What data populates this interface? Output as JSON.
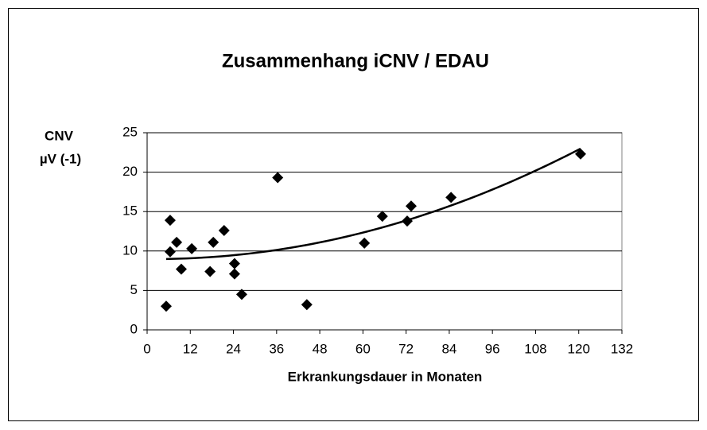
{
  "chart_data": {
    "type": "scatter",
    "title": "Zusammenhang iCNV / EDAU",
    "x_label": "Erkrankungsdauer in Monaten",
    "y_label": [
      "CNV",
      "µV (-1)"
    ],
    "series": [
      {
        "color": "#000000",
        "x": [
          5.3,
          6.4,
          6.4,
          8.2,
          9.5,
          12.4,
          18.4,
          17.5,
          21.4,
          24.3,
          24.3,
          26.3,
          36.3,
          44.4,
          60.4,
          65.4,
          72.3,
          73.4,
          84.5,
          120.5
        ],
        "values": [
          3.0,
          13.9,
          9.9,
          11.1,
          7.7,
          10.3,
          11.1,
          7.4,
          12.6,
          8.4,
          7.1,
          4.5,
          19.3,
          3.2,
          11.0,
          14.4,
          13.8,
          15.7,
          16.8,
          22.3
        ]
      }
    ],
    "trendline": {
      "type": "polynomial",
      "order": 2,
      "color": "#000000"
    },
    "xlim": [
      0,
      132
    ],
    "xticks": [
      0,
      12,
      24,
      36,
      48,
      60,
      72,
      84,
      96,
      108,
      120,
      132
    ],
    "ylim": [
      0,
      25
    ],
    "yticks": [
      0,
      5,
      10,
      15,
      20,
      25
    ],
    "grid": true
  }
}
